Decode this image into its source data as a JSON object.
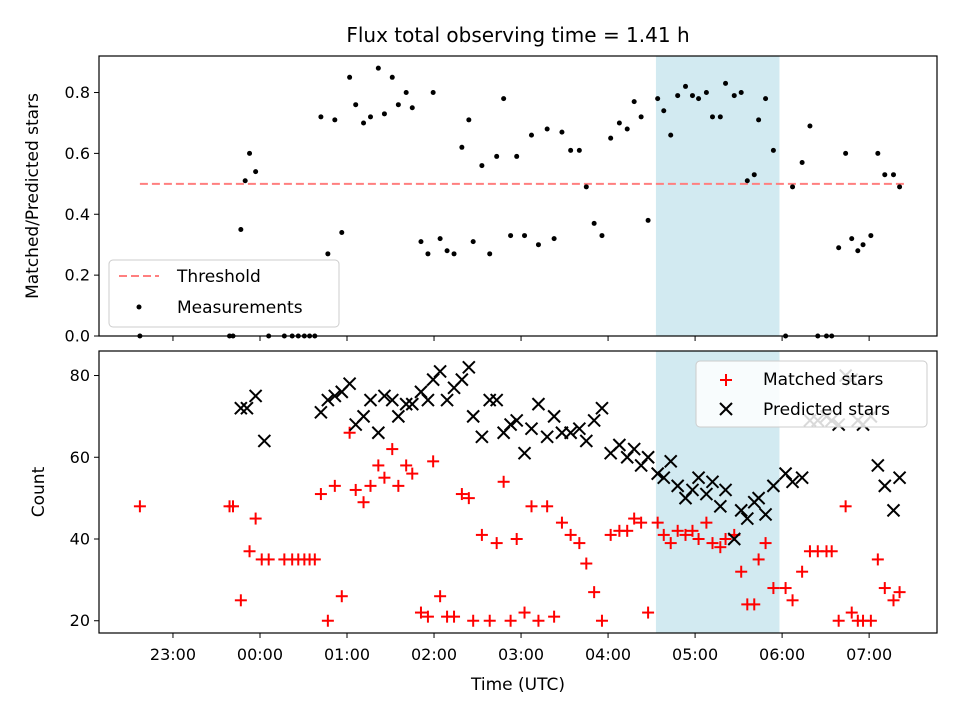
{
  "colors": {
    "threshold": "#ff7f7f",
    "measurement": "#000000",
    "matched": "#ff0000",
    "predicted": "#000000",
    "span": "#add8e6"
  },
  "chart_data": [
    {
      "type": "scatter",
      "title": "Flux total observing time = 1.41 h",
      "xlabel": "",
      "ylabel": "Matched/Predicted stars",
      "xlim_hours": [
        -1.85,
        7.78
      ],
      "ylim": [
        0,
        0.92
      ],
      "yticks": [
        "0.0",
        "0.2",
        "0.4",
        "0.6",
        "0.8"
      ],
      "highlight_span_hours": [
        4.55,
        5.97
      ],
      "legend": {
        "position": "lower-left",
        "entries": [
          "Threshold",
          "Measurements"
        ]
      },
      "threshold": {
        "name": "Threshold",
        "value": 0.5,
        "x_range_hours": [
          -1.38,
          7.4
        ]
      },
      "series": [
        {
          "name": "Measurements",
          "marker": "dot",
          "x_hours": [
            -1.38,
            -0.35,
            -0.31,
            -0.22,
            -0.17,
            -0.12,
            -0.05,
            0.1,
            0.28,
            0.37,
            0.44,
            0.51,
            0.57,
            0.63,
            0.7,
            0.78,
            0.86,
            0.94,
            1.03,
            1.1,
            1.19,
            1.27,
            1.36,
            1.43,
            1.52,
            1.59,
            1.68,
            1.75,
            1.85,
            1.93,
            1.99,
            2.07,
            2.15,
            2.23,
            2.32,
            2.4,
            2.45,
            2.55,
            2.64,
            2.72,
            2.8,
            2.88,
            2.95,
            3.04,
            3.12,
            3.2,
            3.3,
            3.38,
            3.47,
            3.57,
            3.67,
            3.75,
            3.84,
            3.93,
            4.03,
            4.13,
            4.22,
            4.3,
            4.38,
            4.46,
            4.57,
            4.64,
            4.72,
            4.8,
            4.89,
            4.97,
            5.04,
            5.13,
            5.2,
            5.29,
            5.35,
            5.45,
            5.53,
            5.6,
            5.68,
            5.73,
            5.81,
            5.9,
            6.04,
            6.12,
            6.23,
            6.32,
            6.41,
            6.51,
            6.57,
            6.65,
            6.73,
            6.8,
            6.87,
            6.93,
            7.02,
            7.1,
            7.18,
            7.28,
            7.35
          ],
          "y": [
            0.0,
            0.0,
            0.0,
            0.35,
            0.51,
            0.6,
            0.54,
            0.0,
            0.0,
            0.0,
            0.0,
            0.0,
            0.0,
            0.0,
            0.72,
            0.27,
            0.71,
            0.34,
            0.85,
            0.76,
            0.7,
            0.72,
            0.88,
            0.73,
            0.85,
            0.76,
            0.8,
            0.75,
            0.31,
            0.27,
            0.8,
            0.32,
            0.28,
            0.27,
            0.62,
            0.71,
            0.31,
            0.56,
            0.27,
            0.59,
            0.78,
            0.33,
            0.59,
            0.33,
            0.66,
            0.3,
            0.68,
            0.32,
            0.67,
            0.61,
            0.61,
            0.49,
            0.37,
            0.33,
            0.65,
            0.7,
            0.68,
            0.77,
            0.72,
            0.38,
            0.78,
            0.74,
            0.66,
            0.79,
            0.82,
            0.79,
            0.78,
            0.8,
            0.72,
            0.72,
            0.83,
            0.79,
            0.8,
            0.51,
            0.53,
            0.71,
            0.78,
            0.61,
            0.0,
            0.49,
            0.57,
            0.69,
            0.0,
            0.0,
            0.0,
            0.29,
            0.6,
            0.32,
            0.28,
            0.3,
            0.33,
            0.6,
            0.53,
            0.53,
            0.49
          ]
        }
      ]
    },
    {
      "type": "scatter",
      "title": "",
      "xlabel": "Time (UTC)",
      "ylabel": "Count",
      "xlim_hours": [
        -1.85,
        7.78
      ],
      "ylim": [
        17,
        86
      ],
      "yticks": [
        "20",
        "40",
        "60",
        "80"
      ],
      "xticks": [
        "23:00",
        "00:00",
        "01:00",
        "02:00",
        "03:00",
        "04:00",
        "05:00",
        "06:00",
        "07:00"
      ],
      "xtick_hours": [
        -1,
        0,
        1,
        2,
        3,
        4,
        5,
        6,
        7
      ],
      "highlight_span_hours": [
        4.55,
        5.97
      ],
      "legend": {
        "position": "upper-right",
        "entries": [
          "Matched stars",
          "Predicted stars"
        ]
      },
      "series": [
        {
          "name": "Matched stars",
          "marker": "plus",
          "x_hours": [
            -1.38,
            -0.35,
            -0.31,
            -0.22,
            -0.12,
            -0.05,
            0.02,
            0.1,
            0.28,
            0.37,
            0.44,
            0.51,
            0.57,
            0.63,
            0.7,
            0.78,
            0.86,
            0.94,
            1.03,
            1.1,
            1.19,
            1.27,
            1.36,
            1.43,
            1.52,
            1.59,
            1.68,
            1.75,
            1.85,
            1.93,
            1.99,
            2.07,
            2.15,
            2.23,
            2.32,
            2.4,
            2.45,
            2.55,
            2.64,
            2.72,
            2.8,
            2.88,
            2.95,
            3.04,
            3.12,
            3.2,
            3.3,
            3.38,
            3.47,
            3.57,
            3.67,
            3.75,
            3.84,
            3.93,
            4.03,
            4.13,
            4.22,
            4.3,
            4.38,
            4.46,
            4.57,
            4.64,
            4.72,
            4.8,
            4.89,
            4.97,
            5.04,
            5.13,
            5.2,
            5.29,
            5.35,
            5.45,
            5.53,
            5.6,
            5.68,
            5.73,
            5.81,
            5.9,
            6.04,
            6.12,
            6.23,
            6.32,
            6.41,
            6.51,
            6.57,
            6.65,
            6.73,
            6.8,
            6.87,
            6.93,
            7.02,
            7.1,
            7.18,
            7.28,
            7.35
          ],
          "y": [
            48,
            48,
            48,
            25,
            37,
            45,
            35,
            35,
            35,
            35,
            35,
            35,
            35,
            35,
            51,
            20,
            53,
            26,
            66,
            52,
            49,
            53,
            58,
            55,
            62,
            53,
            58,
            56,
            22,
            21,
            59,
            26,
            21,
            21,
            51,
            50,
            20,
            41,
            20,
            39,
            54,
            20,
            40,
            22,
            48,
            20,
            48,
            21,
            44,
            41,
            39,
            34,
            27,
            20,
            41,
            42,
            42,
            45,
            44,
            22,
            44,
            41,
            39,
            42,
            41,
            42,
            40,
            44,
            39,
            38,
            40,
            41,
            32,
            24,
            24,
            35,
            39,
            28,
            28,
            25,
            32,
            37,
            37,
            37,
            37,
            20,
            48,
            22,
            20,
            20,
            20,
            35,
            28,
            25,
            27
          ]
        },
        {
          "name": "Predicted stars",
          "marker": "x",
          "x_hours": [
            -0.22,
            -0.15,
            -0.05,
            0.05,
            0.7,
            0.78,
            0.86,
            0.94,
            1.03,
            1.1,
            1.19,
            1.27,
            1.36,
            1.43,
            1.52,
            1.59,
            1.68,
            1.75,
            1.85,
            1.93,
            1.99,
            2.07,
            2.15,
            2.23,
            2.32,
            2.4,
            2.45,
            2.55,
            2.64,
            2.72,
            2.8,
            2.88,
            2.95,
            3.04,
            3.12,
            3.2,
            3.3,
            3.38,
            3.47,
            3.57,
            3.67,
            3.75,
            3.84,
            3.93,
            4.03,
            4.13,
            4.22,
            4.3,
            4.38,
            4.46,
            4.57,
            4.64,
            4.72,
            4.8,
            4.89,
            4.97,
            5.04,
            5.13,
            5.2,
            5.29,
            5.35,
            5.45,
            5.53,
            5.6,
            5.68,
            5.73,
            5.81,
            5.9,
            6.04,
            6.12,
            6.23,
            6.32,
            6.41,
            6.51,
            6.57,
            6.65,
            6.73,
            6.8,
            6.87,
            6.93,
            7.02,
            7.1,
            7.18,
            7.28,
            7.35
          ],
          "y": [
            72,
            72,
            75,
            64,
            71,
            74,
            75,
            76,
            78,
            68,
            70,
            74,
            66,
            75,
            74,
            70,
            73,
            73,
            76,
            74,
            79,
            81,
            74,
            77,
            79,
            82,
            70,
            65,
            74,
            74,
            66,
            68,
            69,
            61,
            67,
            73,
            65,
            70,
            66,
            66,
            67,
            64,
            69,
            72,
            61,
            63,
            60,
            62,
            58,
            60,
            56,
            55,
            59,
            53,
            50,
            52,
            55,
            51,
            54,
            48,
            52,
            40,
            47,
            45,
            49,
            50,
            46,
            53,
            56,
            54,
            55,
            69,
            69,
            70,
            69,
            68,
            80,
            79,
            69,
            68,
            70,
            58,
            53,
            47,
            55
          ]
        }
      ]
    }
  ]
}
